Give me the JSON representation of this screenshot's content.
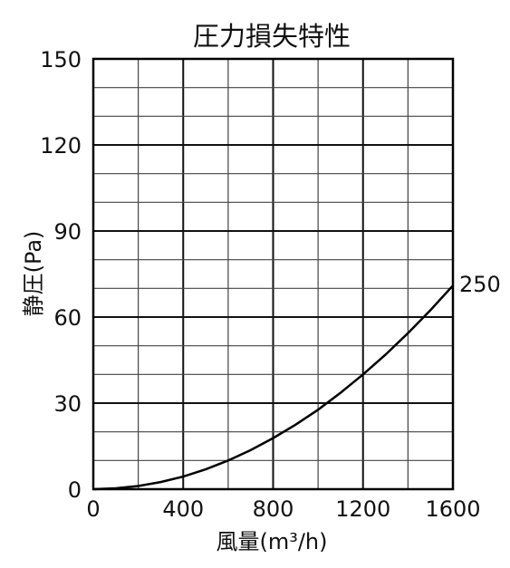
{
  "chart_data": {
    "type": "line",
    "title": "圧力損失特性",
    "xlabel": "風量(m³/h)",
    "ylabel": "静圧(Pa)",
    "xlim": [
      0,
      1600
    ],
    "ylim": [
      0,
      150
    ],
    "x_ticks": [
      "0",
      "400",
      "800",
      "1200",
      "1600"
    ],
    "y_ticks": [
      "0",
      "30",
      "60",
      "90",
      "120",
      "150"
    ],
    "x_minor_step": 200,
    "y_minor_step": 10,
    "grid": true,
    "series": [
      {
        "name": "250",
        "color": "#000000",
        "x": [
          0,
          100,
          200,
          300,
          400,
          500,
          600,
          700,
          800,
          900,
          1000,
          1100,
          1200,
          1300,
          1400,
          1500,
          1600
        ],
        "y": [
          0,
          0.3,
          1.1,
          2.5,
          4.4,
          6.9,
          10,
          13.6,
          17.8,
          22.5,
          27.7,
          33.6,
          40,
          46.9,
          54.4,
          62.4,
          71
        ]
      }
    ]
  }
}
